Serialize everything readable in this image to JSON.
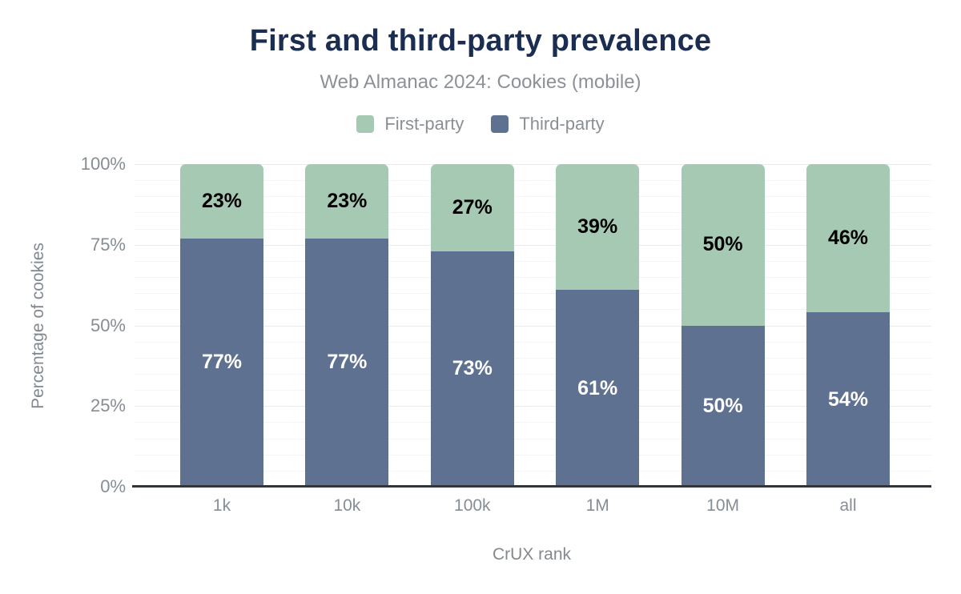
{
  "title": "First and third-party prevalence",
  "subtitle": "Web Almanac 2024: Cookies (mobile)",
  "legend": {
    "items": [
      {
        "label": "First-party",
        "color": "#a6c9b4"
      },
      {
        "label": "Third-party",
        "color": "#5e7190"
      }
    ]
  },
  "chart_data": {
    "type": "bar",
    "stacked": true,
    "title": "First and third-party prevalence",
    "subtitle": "Web Almanac 2024: Cookies (mobile)",
    "categories": [
      "1k",
      "10k",
      "100k",
      "1M",
      "10M",
      "all"
    ],
    "series": [
      {
        "name": "Third-party",
        "color": "#5e7190",
        "label_color": "#ffffff",
        "values": [
          77,
          77,
          73,
          61,
          50,
          54
        ]
      },
      {
        "name": "First-party",
        "color": "#a6c9b4",
        "label_color": "#000000",
        "values": [
          23,
          23,
          27,
          39,
          50,
          46
        ]
      }
    ],
    "value_suffix": "%",
    "xlabel": "CrUX rank",
    "ylabel": "Percentage of cookies",
    "ylim": [
      0,
      100
    ],
    "yticks": [
      0,
      25,
      50,
      75,
      100
    ],
    "ytick_labels": [
      "0%",
      "25%",
      "50%",
      "75%",
      "100%"
    ],
    "minor_grid_step": 5,
    "grid": true,
    "legend_position": "top"
  }
}
